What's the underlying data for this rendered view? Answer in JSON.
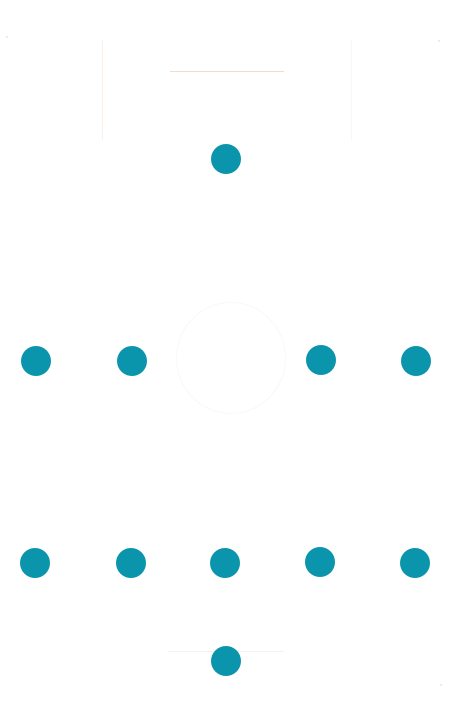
{
  "colors": {
    "dot": "#0a95ad",
    "background": "#ffffff",
    "accent_line": "#f6dcc8"
  },
  "pattern": {
    "rows": [
      {
        "dots": 1
      },
      {
        "dots": 4
      },
      {
        "dots": 5
      },
      {
        "dots": 1
      }
    ]
  }
}
